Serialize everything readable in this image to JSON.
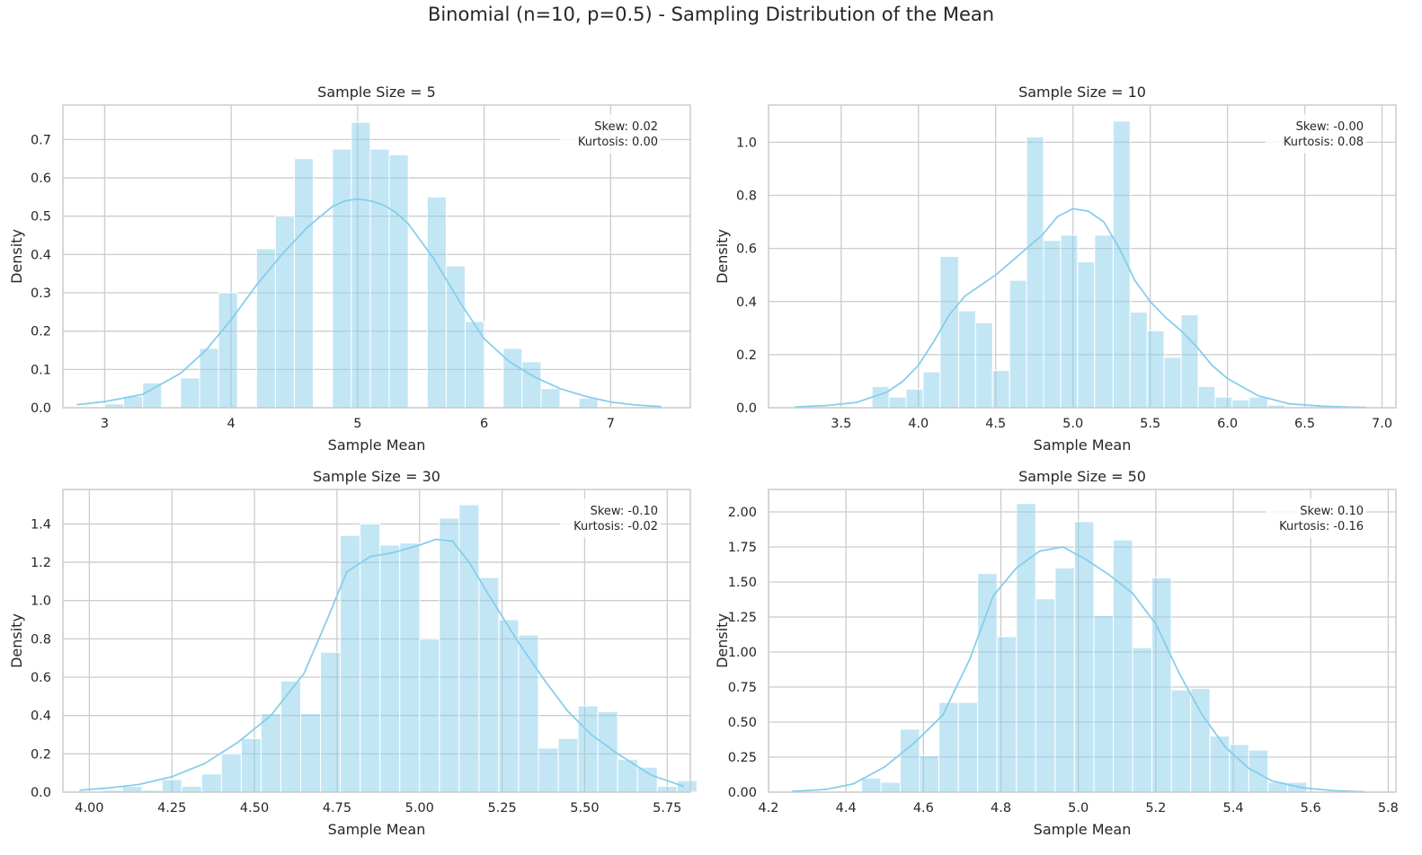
{
  "figure": {
    "suptitle": "Binomial (n=10, p=0.5) - Sampling Distribution of the Mean"
  },
  "colors": {
    "bars": "#87ceeb",
    "kde": "#87ceeb",
    "grid": "#cccccc",
    "text": "#262626"
  },
  "chart_data": [
    {
      "type": "bar",
      "title": "Sample Size = 5",
      "xlabel": "Sample Mean",
      "ylabel": "Density",
      "xlim": [
        2.67,
        7.63
      ],
      "ylim": [
        0,
        0.79
      ],
      "xticks": [
        3,
        4,
        5,
        6,
        7
      ],
      "xtick_labels": [
        "3",
        "4",
        "5",
        "6",
        "7"
      ],
      "yticks": [
        0.0,
        0.1,
        0.2,
        0.3,
        0.4,
        0.5,
        0.6,
        0.7
      ],
      "ytick_labels": [
        "0.0",
        "0.1",
        "0.2",
        "0.3",
        "0.4",
        "0.5",
        "0.6",
        "0.7"
      ],
      "grid": true,
      "stats": {
        "skew": "Skew: 0.02",
        "kurtosis": "Kurtosis: 0.00"
      },
      "bins": [
        {
          "x0": 3.0,
          "x1": 3.15,
          "h": 0.01
        },
        {
          "x0": 3.15,
          "x1": 3.3,
          "h": 0.03
        },
        {
          "x0": 3.3,
          "x1": 3.45,
          "h": 0.065
        },
        {
          "x0": 3.6,
          "x1": 3.75,
          "h": 0.078
        },
        {
          "x0": 3.75,
          "x1": 3.9,
          "h": 0.155
        },
        {
          "x0": 3.9,
          "x1": 4.05,
          "h": 0.3
        },
        {
          "x0": 4.2,
          "x1": 4.35,
          "h": 0.415
        },
        {
          "x0": 4.35,
          "x1": 4.5,
          "h": 0.5
        },
        {
          "x0": 4.5,
          "x1": 4.65,
          "h": 0.65
        },
        {
          "x0": 4.8,
          "x1": 4.95,
          "h": 0.675
        },
        {
          "x0": 4.95,
          "x1": 5.1,
          "h": 0.745
        },
        {
          "x0": 5.1,
          "x1": 5.25,
          "h": 0.675
        },
        {
          "x0": 5.25,
          "x1": 5.4,
          "h": 0.66
        },
        {
          "x0": 5.55,
          "x1": 5.7,
          "h": 0.55
        },
        {
          "x0": 5.7,
          "x1": 5.85,
          "h": 0.37
        },
        {
          "x0": 5.85,
          "x1": 6.0,
          "h": 0.225
        },
        {
          "x0": 6.15,
          "x1": 6.3,
          "h": 0.155
        },
        {
          "x0": 6.3,
          "x1": 6.45,
          "h": 0.12
        },
        {
          "x0": 6.45,
          "x1": 6.6,
          "h": 0.05
        },
        {
          "x0": 6.75,
          "x1": 6.9,
          "h": 0.025
        }
      ],
      "kde": {
        "x": [
          2.78,
          3.0,
          3.3,
          3.6,
          3.8,
          4.0,
          4.2,
          4.4,
          4.6,
          4.8,
          4.9,
          5.0,
          5.1,
          5.2,
          5.3,
          5.4,
          5.6,
          5.8,
          6.0,
          6.2,
          6.4,
          6.6,
          6.8,
          7.0,
          7.2,
          7.4
        ],
        "y": [
          0.008,
          0.016,
          0.035,
          0.09,
          0.15,
          0.23,
          0.32,
          0.4,
          0.47,
          0.525,
          0.54,
          0.545,
          0.54,
          0.53,
          0.51,
          0.48,
          0.39,
          0.28,
          0.18,
          0.12,
          0.08,
          0.05,
          0.03,
          0.015,
          0.007,
          0.003
        ]
      }
    },
    {
      "type": "bar",
      "title": "Sample Size = 10",
      "xlabel": "Sample Mean",
      "ylabel": "Density",
      "xlim": [
        3.03,
        7.09
      ],
      "ylim": [
        0,
        1.14
      ],
      "xticks": [
        3.5,
        4.0,
        4.5,
        5.0,
        5.5,
        6.0,
        6.5,
        7.0
      ],
      "xtick_labels": [
        "3.5",
        "4.0",
        "4.5",
        "5.0",
        "5.5",
        "6.0",
        "6.5",
        "7.0"
      ],
      "yticks": [
        0.0,
        0.2,
        0.4,
        0.6,
        0.8,
        1.0
      ],
      "ytick_labels": [
        "0.0",
        "0.2",
        "0.4",
        "0.6",
        "0.8",
        "1.0"
      ],
      "grid": true,
      "stats": {
        "skew": "Skew: -0.00",
        "kurtosis": "Kurtosis: 0.08"
      },
      "bins": [
        {
          "x0": 3.7,
          "x1": 3.81,
          "h": 0.08
        },
        {
          "x0": 3.81,
          "x1": 3.92,
          "h": 0.04
        },
        {
          "x0": 3.92,
          "x1": 4.03,
          "h": 0.07
        },
        {
          "x0": 4.03,
          "x1": 4.14,
          "h": 0.135
        },
        {
          "x0": 4.14,
          "x1": 4.26,
          "h": 0.57
        },
        {
          "x0": 4.26,
          "x1": 4.37,
          "h": 0.365
        },
        {
          "x0": 4.37,
          "x1": 4.48,
          "h": 0.32
        },
        {
          "x0": 4.48,
          "x1": 4.59,
          "h": 0.14
        },
        {
          "x0": 4.59,
          "x1": 4.7,
          "h": 0.48
        },
        {
          "x0": 4.7,
          "x1": 4.81,
          "h": 1.02
        },
        {
          "x0": 4.81,
          "x1": 4.92,
          "h": 0.63
        },
        {
          "x0": 4.92,
          "x1": 5.03,
          "h": 0.65
        },
        {
          "x0": 5.03,
          "x1": 5.14,
          "h": 0.55
        },
        {
          "x0": 5.14,
          "x1": 5.26,
          "h": 0.65
        },
        {
          "x0": 5.26,
          "x1": 5.37,
          "h": 1.08
        },
        {
          "x0": 5.37,
          "x1": 5.48,
          "h": 0.36
        },
        {
          "x0": 5.48,
          "x1": 5.59,
          "h": 0.29
        },
        {
          "x0": 5.59,
          "x1": 5.7,
          "h": 0.19
        },
        {
          "x0": 5.7,
          "x1": 5.81,
          "h": 0.35
        },
        {
          "x0": 5.81,
          "x1": 5.92,
          "h": 0.08
        },
        {
          "x0": 5.92,
          "x1": 6.03,
          "h": 0.04
        },
        {
          "x0": 6.03,
          "x1": 6.14,
          "h": 0.03
        },
        {
          "x0": 6.14,
          "x1": 6.26,
          "h": 0.04
        },
        {
          "x0": 6.26,
          "x1": 6.37,
          "h": 0.01
        }
      ],
      "kde": {
        "x": [
          3.2,
          3.4,
          3.6,
          3.8,
          3.9,
          4.0,
          4.1,
          4.2,
          4.3,
          4.4,
          4.5,
          4.6,
          4.7,
          4.8,
          4.9,
          5.0,
          5.1,
          5.2,
          5.3,
          5.4,
          5.5,
          5.6,
          5.7,
          5.8,
          5.9,
          6.0,
          6.2,
          6.4,
          6.6,
          6.8,
          6.9
        ],
        "y": [
          0.003,
          0.008,
          0.02,
          0.06,
          0.1,
          0.16,
          0.25,
          0.35,
          0.42,
          0.46,
          0.5,
          0.55,
          0.6,
          0.65,
          0.72,
          0.75,
          0.74,
          0.7,
          0.6,
          0.48,
          0.4,
          0.34,
          0.29,
          0.23,
          0.16,
          0.11,
          0.045,
          0.015,
          0.006,
          0.002,
          0.001
        ]
      }
    },
    {
      "type": "bar",
      "title": "Sample Size = 30",
      "xlabel": "Sample Mean",
      "ylabel": "Density",
      "xlim": [
        3.92,
        5.82
      ],
      "ylim": [
        0,
        1.58
      ],
      "xticks": [
        4.0,
        4.25,
        4.5,
        4.75,
        5.0,
        5.25,
        5.5,
        5.75
      ],
      "xtick_labels": [
        "4.00",
        "4.25",
        "4.50",
        "4.75",
        "5.00",
        "5.25",
        "5.50",
        "5.75"
      ],
      "yticks": [
        0.0,
        0.2,
        0.4,
        0.6,
        0.8,
        1.0,
        1.2,
        1.4
      ],
      "ytick_labels": [
        "0.0",
        "0.2",
        "0.4",
        "0.6",
        "0.8",
        "1.0",
        "1.2",
        "1.4"
      ],
      "grid": true,
      "stats": {
        "skew": "Skew: -0.10",
        "kurtosis": "Kurtosis: -0.02"
      },
      "bins": [
        {
          "x0": 4.04,
          "x1": 4.1,
          "h": 0.01
        },
        {
          "x0": 4.1,
          "x1": 4.16,
          "h": 0.03
        },
        {
          "x0": 4.16,
          "x1": 4.22,
          "h": 0.01
        },
        {
          "x0": 4.22,
          "x1": 4.28,
          "h": 0.065
        },
        {
          "x0": 4.28,
          "x1": 4.34,
          "h": 0.03
        },
        {
          "x0": 4.34,
          "x1": 4.4,
          "h": 0.095
        },
        {
          "x0": 4.4,
          "x1": 4.46,
          "h": 0.2
        },
        {
          "x0": 4.46,
          "x1": 4.52,
          "h": 0.28
        },
        {
          "x0": 4.52,
          "x1": 4.58,
          "h": 0.41
        },
        {
          "x0": 4.58,
          "x1": 4.64,
          "h": 0.58
        },
        {
          "x0": 4.64,
          "x1": 4.7,
          "h": 0.41
        },
        {
          "x0": 4.7,
          "x1": 4.76,
          "h": 0.73
        },
        {
          "x0": 4.76,
          "x1": 4.82,
          "h": 1.34
        },
        {
          "x0": 4.82,
          "x1": 4.88,
          "h": 1.4
        },
        {
          "x0": 4.88,
          "x1": 4.94,
          "h": 1.29
        },
        {
          "x0": 4.94,
          "x1": 5.0,
          "h": 1.3
        },
        {
          "x0": 5.0,
          "x1": 5.06,
          "h": 0.8
        },
        {
          "x0": 5.06,
          "x1": 5.12,
          "h": 1.43
        },
        {
          "x0": 5.12,
          "x1": 5.18,
          "h": 1.5
        },
        {
          "x0": 5.18,
          "x1": 5.24,
          "h": 1.12
        },
        {
          "x0": 5.24,
          "x1": 5.3,
          "h": 0.9
        },
        {
          "x0": 5.3,
          "x1": 5.36,
          "h": 0.82
        },
        {
          "x0": 5.36,
          "x1": 5.42,
          "h": 0.23
        },
        {
          "x0": 5.42,
          "x1": 5.48,
          "h": 0.28
        },
        {
          "x0": 5.48,
          "x1": 5.54,
          "h": 0.45
        },
        {
          "x0": 5.54,
          "x1": 5.6,
          "h": 0.42
        },
        {
          "x0": 5.6,
          "x1": 5.66,
          "h": 0.17
        },
        {
          "x0": 5.66,
          "x1": 5.72,
          "h": 0.13
        },
        {
          "x0": 5.72,
          "x1": 5.78,
          "h": 0.03
        },
        {
          "x0": 5.78,
          "x1": 5.84,
          "h": 0.06
        }
      ],
      "kde": {
        "x": [
          3.97,
          4.05,
          4.15,
          4.25,
          4.35,
          4.45,
          4.55,
          4.65,
          4.72,
          4.78,
          4.85,
          4.92,
          5.0,
          5.05,
          5.1,
          5.15,
          5.22,
          5.3,
          5.38,
          5.45,
          5.52,
          5.6,
          5.7,
          5.8
        ],
        "y": [
          0.01,
          0.02,
          0.04,
          0.08,
          0.15,
          0.26,
          0.4,
          0.62,
          0.9,
          1.15,
          1.23,
          1.25,
          1.29,
          1.32,
          1.31,
          1.2,
          1.0,
          0.78,
          0.58,
          0.42,
          0.3,
          0.2,
          0.09,
          0.03
        ]
      }
    },
    {
      "type": "bar",
      "title": "Sample Size = 50",
      "xlabel": "Sample Mean",
      "ylabel": "Density",
      "xlim": [
        4.2,
        5.82
      ],
      "ylim": [
        0,
        2.16
      ],
      "xticks": [
        4.2,
        4.4,
        4.6,
        4.8,
        5.0,
        5.2,
        5.4,
        5.6,
        5.8
      ],
      "xtick_labels": [
        "4.2",
        "4.4",
        "4.6",
        "4.8",
        "5.0",
        "5.2",
        "5.4",
        "5.6",
        "5.8"
      ],
      "yticks": [
        0.0,
        0.25,
        0.5,
        0.75,
        1.0,
        1.25,
        1.5,
        1.75,
        2.0
      ],
      "ytick_labels": [
        "0.00",
        "0.25",
        "0.50",
        "0.75",
        "1.00",
        "1.25",
        "1.50",
        "1.75",
        "2.00"
      ],
      "grid": true,
      "stats": {
        "skew": "Skew: 0.10",
        "kurtosis": "Kurtosis: -0.16"
      },
      "bins": [
        {
          "x0": 4.44,
          "x1": 4.49,
          "h": 0.1
        },
        {
          "x0": 4.49,
          "x1": 4.54,
          "h": 0.07
        },
        {
          "x0": 4.54,
          "x1": 4.59,
          "h": 0.45
        },
        {
          "x0": 4.59,
          "x1": 4.64,
          "h": 0.26
        },
        {
          "x0": 4.64,
          "x1": 4.69,
          "h": 0.64
        },
        {
          "x0": 4.69,
          "x1": 4.74,
          "h": 0.64
        },
        {
          "x0": 4.74,
          "x1": 4.79,
          "h": 1.56
        },
        {
          "x0": 4.79,
          "x1": 4.84,
          "h": 1.11
        },
        {
          "x0": 4.84,
          "x1": 4.89,
          "h": 2.06
        },
        {
          "x0": 4.89,
          "x1": 4.94,
          "h": 1.38
        },
        {
          "x0": 4.94,
          "x1": 4.99,
          "h": 1.6
        },
        {
          "x0": 4.99,
          "x1": 5.04,
          "h": 1.93
        },
        {
          "x0": 5.04,
          "x1": 5.09,
          "h": 1.26
        },
        {
          "x0": 5.09,
          "x1": 5.14,
          "h": 1.8
        },
        {
          "x0": 5.14,
          "x1": 5.19,
          "h": 1.03
        },
        {
          "x0": 5.19,
          "x1": 5.24,
          "h": 1.53
        },
        {
          "x0": 5.24,
          "x1": 5.29,
          "h": 0.73
        },
        {
          "x0": 5.29,
          "x1": 5.34,
          "h": 0.74
        },
        {
          "x0": 5.34,
          "x1": 5.39,
          "h": 0.4
        },
        {
          "x0": 5.39,
          "x1": 5.44,
          "h": 0.34
        },
        {
          "x0": 5.44,
          "x1": 5.49,
          "h": 0.3
        },
        {
          "x0": 5.49,
          "x1": 5.54,
          "h": 0.07
        },
        {
          "x0": 5.54,
          "x1": 5.59,
          "h": 0.07
        }
      ],
      "kde": {
        "x": [
          4.26,
          4.35,
          4.42,
          4.5,
          4.58,
          4.65,
          4.72,
          4.78,
          4.84,
          4.9,
          4.96,
          5.02,
          5.08,
          5.14,
          5.2,
          5.26,
          5.32,
          5.38,
          5.44,
          5.5,
          5.58,
          5.66,
          5.74
        ],
        "y": [
          0.005,
          0.02,
          0.06,
          0.18,
          0.36,
          0.55,
          0.95,
          1.4,
          1.6,
          1.72,
          1.75,
          1.66,
          1.55,
          1.42,
          1.2,
          0.85,
          0.55,
          0.32,
          0.17,
          0.08,
          0.03,
          0.01,
          0.002
        ]
      }
    }
  ]
}
